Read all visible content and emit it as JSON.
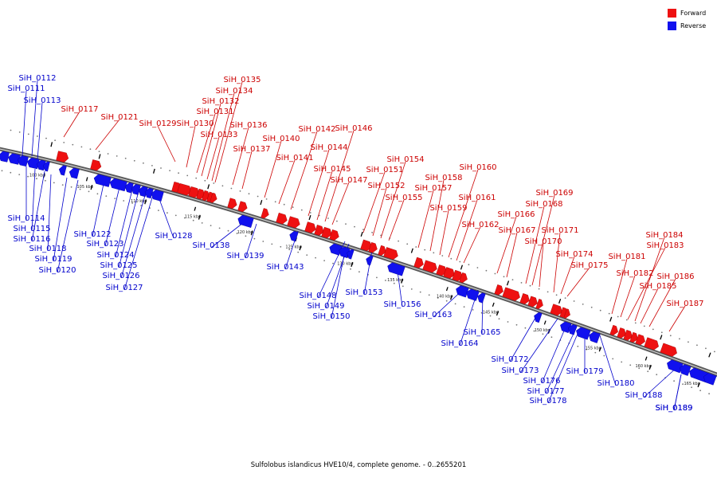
{
  "legend": {
    "forward": {
      "label": "Forward",
      "color": "#ee1111"
    },
    "reverse": {
      "label": "Reverse",
      "color": "#1111ee"
    }
  },
  "caption": "Sulfolobus islandicus HVE10/4, complete genome. - 0..2655201",
  "ticks": [
    "100 kbp",
    "105 kbp",
    "110 kbp",
    "115 kbp",
    "120 kbp",
    "125 kbp",
    "130 kbp",
    "135 kbp",
    "140 kbp",
    "145 kbp",
    "150 kbp",
    "155 kbp",
    "160 kbp",
    "165 kbp"
  ],
  "forward_genes": [
    "SiH_0117",
    "SiH_0121",
    "SiH_0129",
    "SiH_0130",
    "SiH_0131",
    "SiH_0132",
    "SiH_0133",
    "SiH_0134",
    "SiH_0135",
    "SiH_0136",
    "SiH_0137",
    "SiH_0140",
    "SiH_0141",
    "SiH_0142",
    "SiH_0144",
    "SiH_0145",
    "SiH_0146",
    "SiH_0147",
    "SiH_0151",
    "SiH_0152",
    "SiH_0154",
    "SiH_0155",
    "SiH_0157",
    "SiH_0158",
    "SiH_0159",
    "SiH_0160",
    "SiH_0161",
    "SiH_0162",
    "SiH_0166",
    "SiH_0167",
    "SiH_0168",
    "SiH_0169",
    "SiH_0170",
    "SiH_0171",
    "SiH_0174",
    "SiH_0175",
    "SiH_0181",
    "SiH_0182",
    "SiH_0183",
    "SiH_0184",
    "SiH_0185",
    "SiH_0186",
    "SiH_0187"
  ],
  "reverse_genes": [
    "SiH_0111",
    "SiH_0112",
    "SiH_0113",
    "SiH_0114",
    "SiH_0115",
    "SiH_0116",
    "SiH_0118",
    "SiH_0119",
    "SiH_0120",
    "SiH_0122",
    "SiH_0123",
    "SiH_0124",
    "SiH_0125",
    "SiH_0126",
    "SiH_0127",
    "SiH_0128",
    "SiH_0138",
    "SiH_0139",
    "SiH_0143",
    "SiH_0148",
    "SiH_0149",
    "SiH_0150",
    "SiH_0153",
    "SiH_0156",
    "SiH_0163",
    "SiH_0164",
    "SiH_0165",
    "SiH_0172",
    "SiH_0173",
    "SiH_0176",
    "SiH_0177",
    "SiH_0178",
    "SiH_0179",
    "SiH_0180",
    "SiH_0188",
    "SiH_0189"
  ]
}
